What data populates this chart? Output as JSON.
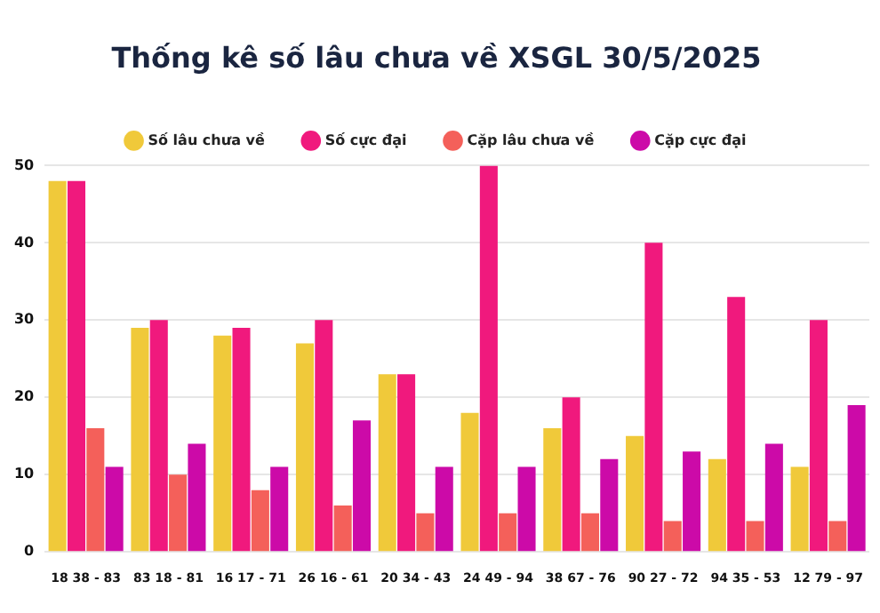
{
  "chart_data": {
    "type": "bar",
    "title": "Thống kê số lâu chưa về XSGL 30/5/2025",
    "categories": [
      "18 38 - 83",
      "83 18 - 81",
      "16 17 - 71",
      "26 16 - 61",
      "20 34 - 43",
      "24 49 - 94",
      "38 67 - 76",
      "90 27 - 72",
      "94 35 - 53",
      "12 79 - 97"
    ],
    "series": [
      {
        "name": "Số lâu chưa về",
        "color": "#f0c93a",
        "values": [
          48,
          29,
          28,
          27,
          23,
          18,
          16,
          15,
          12,
          11
        ]
      },
      {
        "name": "Số cực đại",
        "color": "#f0197d",
        "values": [
          48,
          30,
          29,
          30,
          23,
          50,
          20,
          40,
          33,
          30
        ]
      },
      {
        "name": "Cặp lâu chưa về",
        "color": "#f4605a",
        "values": [
          16,
          10,
          8,
          6,
          5,
          5,
          5,
          4,
          4,
          4
        ]
      },
      {
        "name": "Cặp cực đại",
        "color": "#cc0aa8",
        "values": [
          11,
          14,
          11,
          17,
          11,
          11,
          12,
          13,
          14,
          19
        ]
      }
    ],
    "ylim": [
      0,
      50
    ],
    "yticks": [
      0,
      10,
      20,
      30,
      40,
      50
    ],
    "grid": "y",
    "legend": "top"
  }
}
